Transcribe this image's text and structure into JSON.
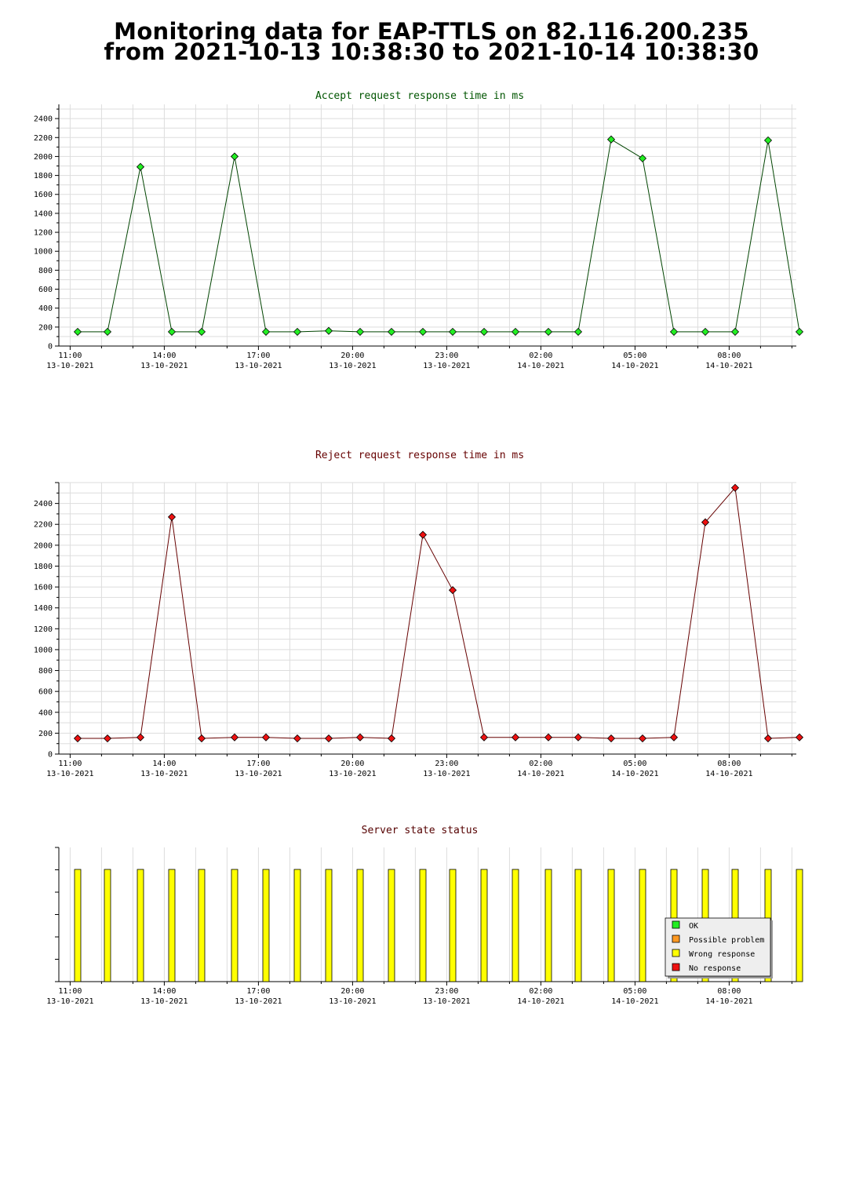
{
  "header": {
    "title_line1": "Monitoring data for EAP-TTLS on 82.116.200.235",
    "title_line2": "from 2021-10-13 10:38:30 to 2021-10-14 10:38:30"
  },
  "colors": {
    "accept_line": "#004400",
    "accept_marker": "#22ee22",
    "accept_title": "#005500",
    "reject_line": "#660000",
    "reject_marker": "#ee1111",
    "reject_title": "#660000",
    "status_title": "#550000",
    "status_bar": "#ffff00",
    "grid": "#dddddd"
  },
  "x_axis_ticks": [
    {
      "time": "11:00",
      "date": "13-10-2021"
    },
    {
      "time": "14:00",
      "date": "13-10-2021"
    },
    {
      "time": "17:00",
      "date": "13-10-2021"
    },
    {
      "time": "20:00",
      "date": "13-10-2021"
    },
    {
      "time": "23:00",
      "date": "13-10-2021"
    },
    {
      "time": "02:00",
      "date": "14-10-2021"
    },
    {
      "time": "05:00",
      "date": "14-10-2021"
    },
    {
      "time": "08:00",
      "date": "14-10-2021"
    }
  ],
  "chart_data": [
    {
      "type": "line",
      "title": "Accept request response time in ms",
      "xlabel": "",
      "ylabel": "",
      "x_unit": "hours after 2021-10-13 10:38:30",
      "ylim": [
        0,
        2550
      ],
      "yticks": [
        0,
        200,
        400,
        600,
        800,
        1000,
        1200,
        1400,
        1600,
        1800,
        2000,
        2200,
        2400
      ],
      "grid": true,
      "series": [
        {
          "x": [
            0.6,
            1.55,
            2.6,
            3.6,
            4.55,
            5.6,
            6.6,
            7.6,
            8.6,
            9.6,
            10.6,
            11.6,
            12.55,
            13.55,
            14.55,
            15.6,
            16.55,
            17.6,
            18.6,
            19.6,
            20.6,
            21.55,
            22.6,
            23.6
          ],
          "values": [
            150,
            150,
            1890,
            150,
            150,
            2000,
            150,
            150,
            160,
            150,
            150,
            150,
            150,
            150,
            150,
            150,
            150,
            2180,
            1980,
            150,
            150,
            150,
            2170,
            150
          ]
        }
      ]
    },
    {
      "type": "line",
      "title": "Reject request response time in ms",
      "xlabel": "",
      "ylabel": "",
      "x_unit": "hours after 2021-10-13 10:38:30",
      "ylim": [
        0,
        2600
      ],
      "yticks": [
        0,
        200,
        400,
        600,
        800,
        1000,
        1200,
        1400,
        1600,
        1800,
        2000,
        2200,
        2400
      ],
      "grid": true,
      "series": [
        {
          "x": [
            0.6,
            1.55,
            2.6,
            3.6,
            4.55,
            5.6,
            6.6,
            7.6,
            8.6,
            9.6,
            10.6,
            11.6,
            12.55,
            13.55,
            14.55,
            15.6,
            16.55,
            17.6,
            18.6,
            19.6,
            20.6,
            21.55,
            22.6,
            23.6
          ],
          "values": [
            150,
            150,
            160,
            2270,
            150,
            160,
            160,
            150,
            150,
            160,
            150,
            2100,
            1570,
            160,
            160,
            160,
            160,
            150,
            150,
            160,
            2220,
            2550,
            150,
            160
          ]
        }
      ]
    },
    {
      "type": "bar",
      "title": "Server state status",
      "xlabel": "",
      "ylabel": "",
      "x_unit": "hours after 2021-10-13 10:38:30",
      "x": [
        0.6,
        1.55,
        2.6,
        3.6,
        4.55,
        5.6,
        6.6,
        7.6,
        8.6,
        9.6,
        10.6,
        11.6,
        12.55,
        13.55,
        14.55,
        15.6,
        16.55,
        17.6,
        18.6,
        19.6,
        20.6,
        21.55,
        22.6,
        23.6
      ],
      "states": [
        "Wrong response",
        "Wrong response",
        "Wrong response",
        "Wrong response",
        "Wrong response",
        "Wrong response",
        "Wrong response",
        "Wrong response",
        "Wrong response",
        "Wrong response",
        "Wrong response",
        "Wrong response",
        "Wrong response",
        "Wrong response",
        "Wrong response",
        "Wrong response",
        "Wrong response",
        "Wrong response",
        "Wrong response",
        "Wrong response",
        "Wrong response",
        "Wrong response",
        "Wrong response",
        "Wrong response"
      ],
      "legend_position": "bottom-right",
      "legend": [
        {
          "label": "OK",
          "color": "#22ee22"
        },
        {
          "label": "Possible problem",
          "color": "#ff9922"
        },
        {
          "label": "Wrong response",
          "color": "#ffff00"
        },
        {
          "label": "No response",
          "color": "#ee1111"
        }
      ]
    }
  ]
}
